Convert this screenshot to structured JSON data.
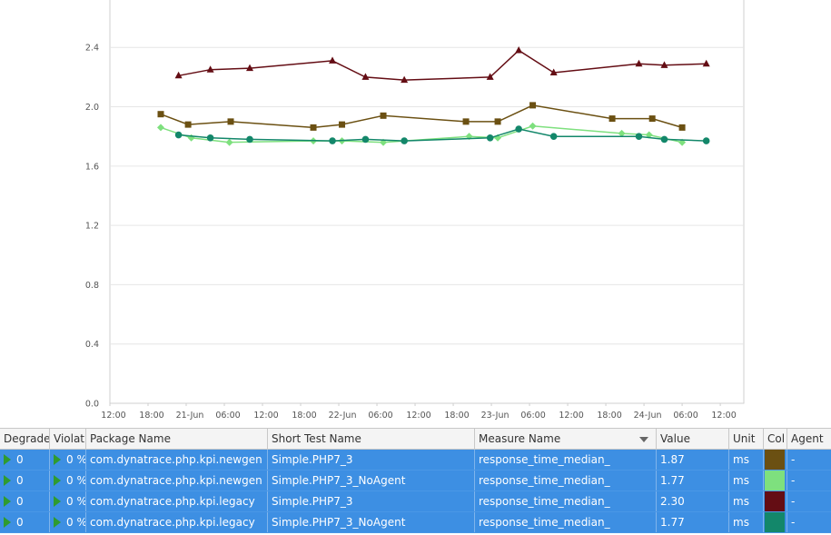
{
  "chart_data": {
    "type": "line",
    "title": "",
    "xlabel": "",
    "ylabel": "",
    "ylim": [
      0,
      2.6
    ],
    "y_ticks": [
      "0.0",
      "0.4",
      "0.8",
      "1.2",
      "1.6",
      "2.0",
      "2.4"
    ],
    "x_ticks": [
      "12:00",
      "18:00",
      "21-Jun",
      "06:00",
      "12:00",
      "18:00",
      "22-Jun",
      "06:00",
      "12:00",
      "18:00",
      "23-Jun",
      "06:00",
      "12:00",
      "18:00",
      "24-Jun",
      "06:00",
      "12:00"
    ],
    "x_ticks_hours": [
      0,
      6,
      12,
      18,
      24,
      30,
      36,
      42,
      48,
      54,
      60,
      66,
      72,
      78,
      84,
      90,
      96
    ],
    "grid": true,
    "legend": "none",
    "series": [
      {
        "color": "#6b5012",
        "marker": "square",
        "x": [
          8,
          12.3,
          19,
          32,
          36.5,
          43,
          56,
          61,
          66.5,
          79,
          85.3,
          90
        ],
        "y": [
          1.95,
          1.88,
          1.9,
          1.86,
          1.88,
          1.94,
          1.9,
          1.9,
          2.01,
          1.92,
          1.92,
          1.86
        ]
      },
      {
        "color": "#7ee07e",
        "marker": "diamond",
        "x": [
          8,
          12.8,
          18.8,
          32,
          36.5,
          43,
          56.5,
          61,
          66.5,
          80.5,
          84.8,
          90
        ],
        "y": [
          1.86,
          1.79,
          1.76,
          1.77,
          1.77,
          1.76,
          1.8,
          1.79,
          1.87,
          1.82,
          1.81,
          1.76
        ]
      },
      {
        "color": "#640d14",
        "marker": "triangle",
        "x": [
          10.8,
          15.8,
          22,
          35,
          40.2,
          46.3,
          59.8,
          64.3,
          69.8,
          83.2,
          87.2,
          93.8
        ],
        "y": [
          2.21,
          2.25,
          2.26,
          2.31,
          2.2,
          2.18,
          2.2,
          2.38,
          2.23,
          2.29,
          2.28,
          2.29
        ]
      },
      {
        "color": "#13876a",
        "marker": "circle",
        "x": [
          10.8,
          15.8,
          22,
          35,
          40.2,
          46.3,
          59.8,
          64.3,
          69.8,
          83.2,
          87.2,
          93.8
        ],
        "y": [
          1.81,
          1.79,
          1.78,
          1.77,
          1.78,
          1.77,
          1.79,
          1.85,
          1.8,
          1.8,
          1.78,
          1.77
        ]
      }
    ]
  },
  "table": {
    "columns": [
      {
        "key": "deg",
        "label": "Degrade"
      },
      {
        "key": "vio",
        "label": "Violat"
      },
      {
        "key": "pkg",
        "label": "Package Name"
      },
      {
        "key": "test",
        "label": "Short Test Name"
      },
      {
        "key": "meas",
        "label": "Measure Name"
      },
      {
        "key": "val",
        "label": "Value"
      },
      {
        "key": "unit",
        "label": "Unit"
      },
      {
        "key": "col",
        "label": "Col"
      },
      {
        "key": "agent",
        "label": "Agent"
      }
    ],
    "sort_column": "meas",
    "rows": [
      {
        "deg": "0",
        "vio": "0 %",
        "pkg": "com.dynatrace.php.kpi.newgen",
        "test": "Simple.PHP7_3",
        "meas": "response_time_median_",
        "val": "1.87",
        "unit": "ms",
        "color": "#6b5012",
        "agent": "-"
      },
      {
        "deg": "0",
        "vio": "0 %",
        "pkg": "com.dynatrace.php.kpi.newgen",
        "test": "Simple.PHP7_3_NoAgent",
        "meas": "response_time_median_",
        "val": "1.77",
        "unit": "ms",
        "color": "#7ee07e",
        "agent": "-"
      },
      {
        "deg": "0",
        "vio": "0 %",
        "pkg": "com.dynatrace.php.kpi.legacy",
        "test": "Simple.PHP7_3",
        "meas": "response_time_median_",
        "val": "2.30",
        "unit": "ms",
        "color": "#640d14",
        "agent": "-"
      },
      {
        "deg": "0",
        "vio": "0 %",
        "pkg": "com.dynatrace.php.kpi.legacy",
        "test": "Simple.PHP7_3_NoAgent",
        "meas": "response_time_median_",
        "val": "1.77",
        "unit": "ms",
        "color": "#13876a",
        "agent": "-"
      }
    ]
  }
}
